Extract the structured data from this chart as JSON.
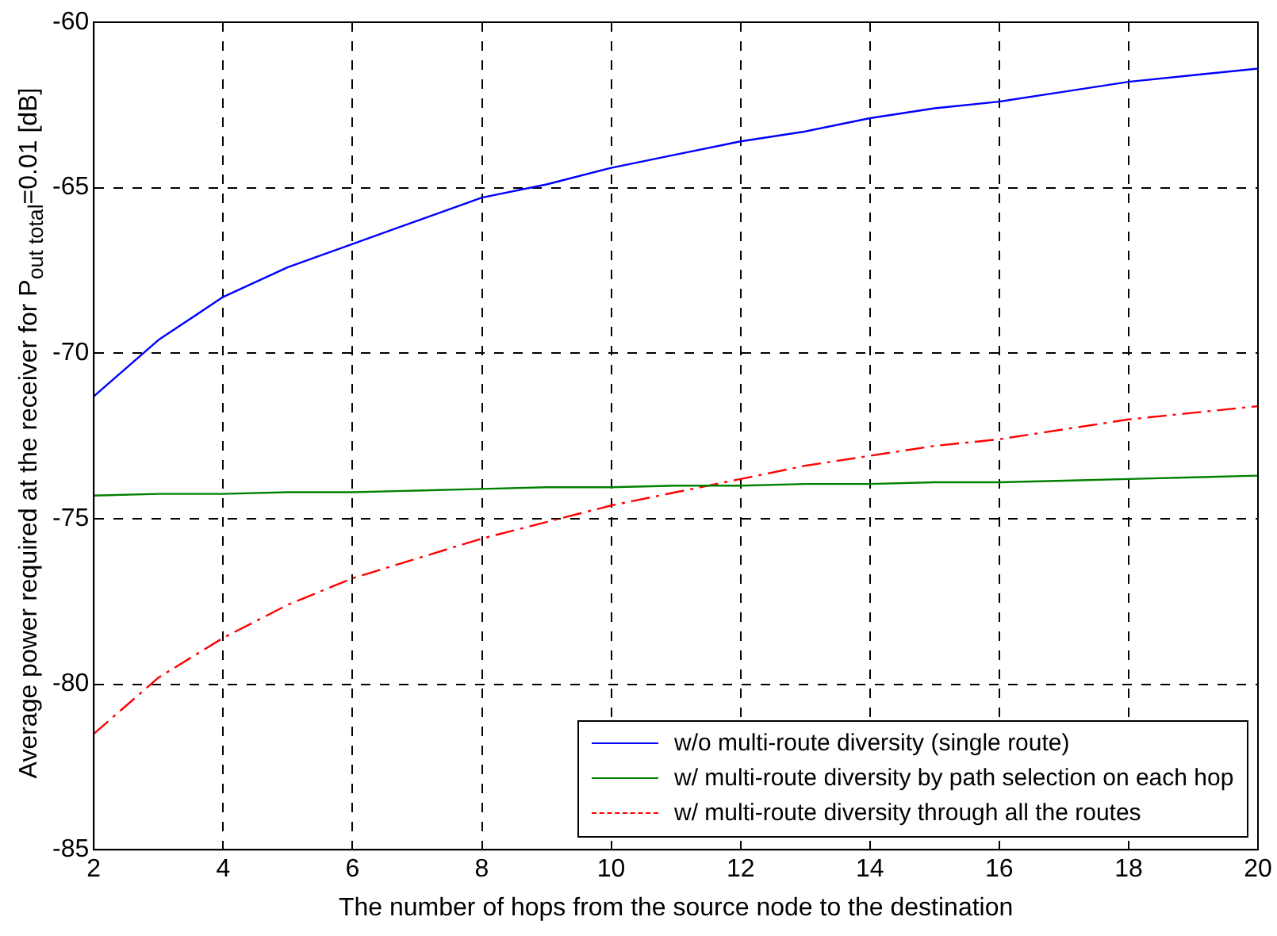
{
  "chart_data": {
    "type": "line",
    "xlabel": "The number of hops from the source node to the destination",
    "ylabel": "Average power required at the receiver for P$_{out total}$=0.01 [dB]",
    "x": [
      2,
      3,
      4,
      5,
      6,
      7,
      8,
      9,
      10,
      11,
      12,
      13,
      14,
      15,
      16,
      17,
      18,
      19,
      20
    ],
    "series": [
      {
        "name": "w/o multi-route diversity (single route)",
        "color": "#0000ff",
        "line_style": "solid",
        "values": [
          -71.3,
          -69.6,
          -68.3,
          -67.4,
          -66.7,
          -66.0,
          -65.3,
          -64.9,
          -64.4,
          -64.0,
          -63.6,
          -63.3,
          -62.9,
          -62.6,
          -62.4,
          -62.1,
          -61.8,
          -61.6,
          -61.4
        ]
      },
      {
        "name": "w/ multi-route diversity by path selection on each hop",
        "color": "#008000",
        "line_style": "solid",
        "values": [
          -74.3,
          -74.25,
          -74.25,
          -74.2,
          -74.2,
          -74.15,
          -74.1,
          -74.05,
          -74.05,
          -74.0,
          -74.0,
          -73.95,
          -73.95,
          -73.9,
          -73.9,
          -73.85,
          -73.8,
          -73.75,
          -73.7
        ]
      },
      {
        "name": "w/ multi-route diversity through all the routes",
        "color": "#ff0000",
        "line_style": "dashed",
        "values": [
          -81.5,
          -79.8,
          -78.6,
          -77.6,
          -76.8,
          -76.2,
          -75.6,
          -75.1,
          -74.6,
          -74.2,
          -73.8,
          -73.4,
          -73.1,
          -72.8,
          -72.6,
          -72.3,
          -72.0,
          -71.8,
          -71.6
        ]
      }
    ],
    "xlim": [
      2,
      20
    ],
    "xticks": [
      2,
      4,
      6,
      8,
      10,
      12,
      14,
      16,
      18,
      20
    ],
    "ylim": [
      -85,
      -60
    ],
    "yticks": [
      -85,
      -80,
      -75,
      -70,
      -65,
      -60
    ],
    "grid": true,
    "legend": "bottom right",
    "marker": "none"
  }
}
